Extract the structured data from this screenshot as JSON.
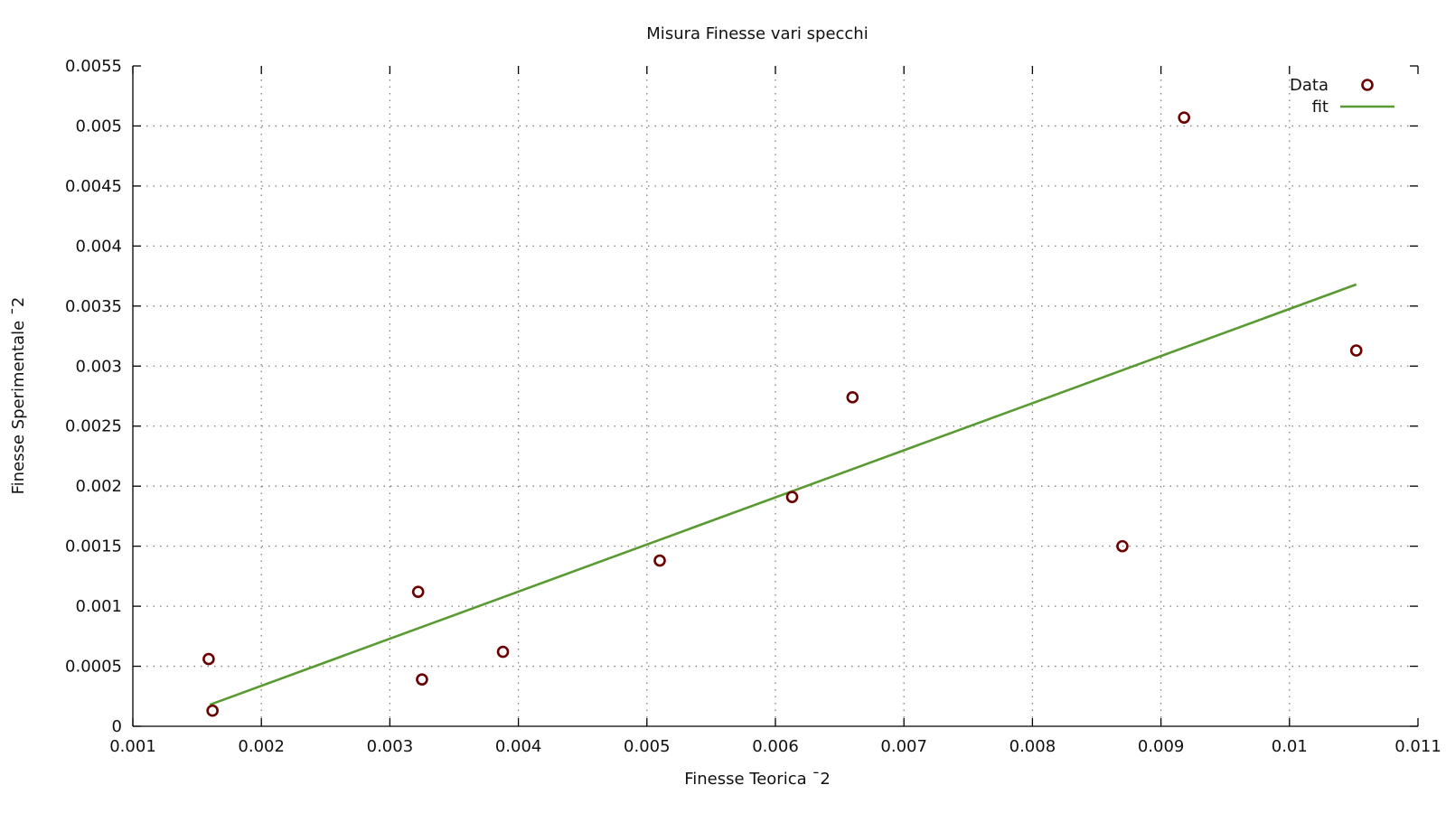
{
  "chart_data": {
    "type": "scatter",
    "title": "Misura Finesse vari specchi",
    "xlabel": "Finesse Teorica ¯2",
    "ylabel": "Finesse Sperimentale ¯2",
    "xlim": [
      0.001,
      0.011
    ],
    "ylim": [
      0,
      0.0055
    ],
    "x_ticks": [
      "0.001",
      "0.002",
      "0.003",
      "0.004",
      "0.005",
      "0.006",
      "0.007",
      "0.008",
      "0.009",
      "0.01",
      "0.011"
    ],
    "y_ticks": [
      "0",
      "0.0005",
      "0.001",
      "0.0015",
      "0.002",
      "0.0025",
      "0.003",
      "0.0035",
      "0.004",
      "0.0045",
      "0.005",
      "0.0055"
    ],
    "grid": true,
    "legend_position": "top-right",
    "series": [
      {
        "name": "Data",
        "kind": "points",
        "color": "#6b0000",
        "points": [
          [
            0.00159,
            0.00056
          ],
          [
            0.00162,
            0.00013
          ],
          [
            0.00322,
            0.00112
          ],
          [
            0.00325,
            0.00039
          ],
          [
            0.00388,
            0.00062
          ],
          [
            0.0051,
            0.00138
          ],
          [
            0.00613,
            0.00191
          ],
          [
            0.0066,
            0.00274
          ],
          [
            0.0087,
            0.0015
          ],
          [
            0.00918,
            0.00507
          ],
          [
            0.01052,
            0.00313
          ]
        ]
      },
      {
        "name": "fit",
        "kind": "line",
        "color": "#5a9a32",
        "points": [
          [
            0.0016,
            0.00018
          ],
          [
            0.01052,
            0.00368
          ]
        ]
      }
    ]
  }
}
